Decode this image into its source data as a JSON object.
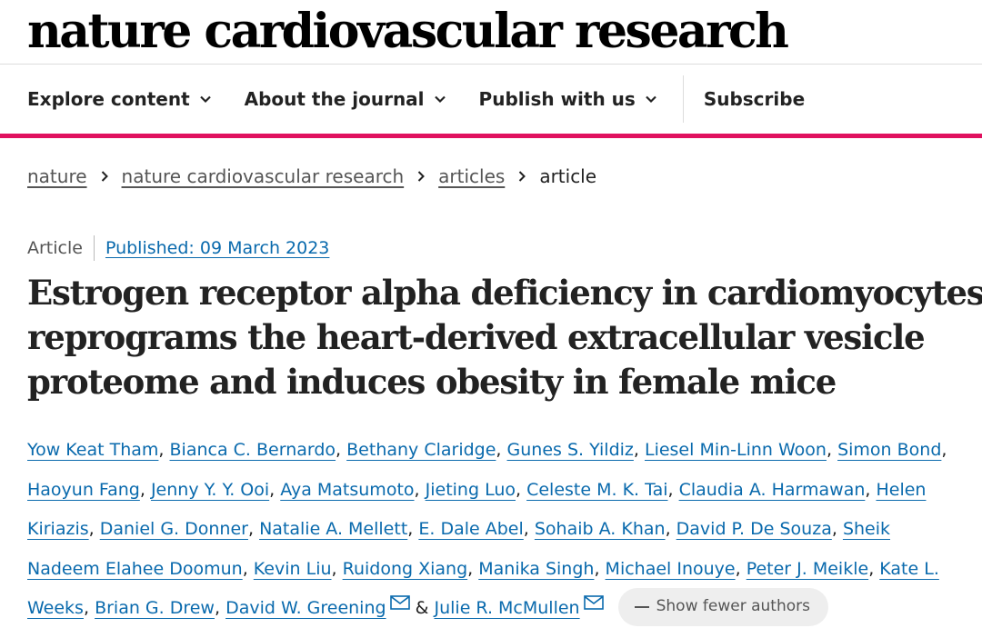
{
  "journal": {
    "name": "nature cardiovascular research"
  },
  "nav": {
    "items": [
      {
        "label": "Explore content"
      },
      {
        "label": "About the journal"
      },
      {
        "label": "Publish with us"
      }
    ],
    "subscribe": "Subscribe"
  },
  "breadcrumb": {
    "items": [
      "nature",
      "nature cardiovascular research",
      "articles"
    ],
    "current": "article"
  },
  "article": {
    "type": "Article",
    "published": "Published: 09 March 2023",
    "title_lines": [
      "Estrogen receptor alpha deficiency in cardiomyocytes",
      "reprograms the heart-derived extracellular vesicle",
      "proteome and induces obesity in female mice"
    ]
  },
  "authors": {
    "names": [
      "Yow Keat Tham",
      "Bianca C. Bernardo",
      "Bethany Claridge",
      "Gunes S. Yildiz",
      "Liesel Min-Linn Woon",
      "Simon Bond",
      "Haoyun Fang",
      "Jenny Y. Y. Ooi",
      "Aya Matsumoto",
      "Jieting Luo",
      "Celeste M. K. Tai",
      "Claudia A. Harmawan",
      "Helen Kiriazis",
      "Daniel G. Donner",
      "Natalie A. Mellett",
      "E. Dale Abel",
      "Sohaib A. Khan",
      "David P. De Souza",
      "Sheik Nadeem Elahee Doomun",
      "Kevin Liu",
      "Ruidong Xiang",
      "Manika Singh",
      "Michael Inouye",
      "Peter J. Meikle",
      "Kate L. Weeks",
      "Brian G. Drew",
      "David W. Greening",
      "Julie R. McMullen"
    ],
    "line_texts": {
      "helen_a": "Helen",
      "helen_b": "Kiriazis",
      "sheik_a": "Sheik",
      "sheik_b": "Nadeem Elahee Doomun",
      "kate_a": "Kate L.",
      "kate_b": "Weeks"
    },
    "separator": ",",
    "ampersand": "&",
    "show_fewer": "Show fewer authors"
  }
}
